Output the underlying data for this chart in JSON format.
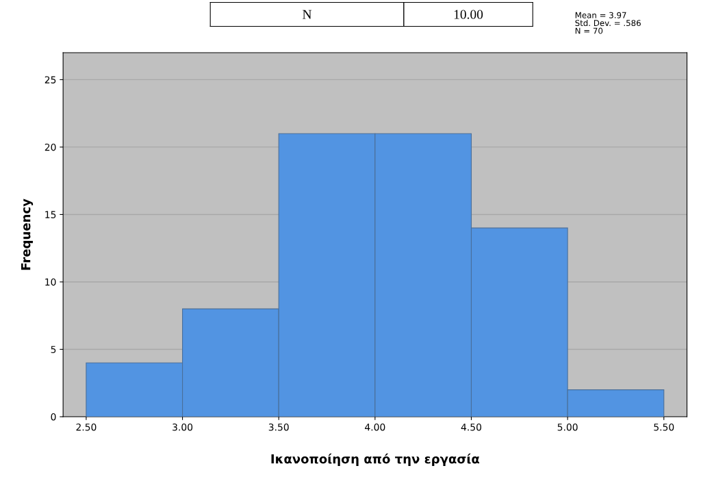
{
  "chart_data": {
    "type": "histogram",
    "xlabel": "Ικανοποίηση από την εργασία",
    "ylabel": "Frequency",
    "bins": [
      2.5,
      3.0,
      3.5,
      4.0,
      4.5,
      5.0,
      5.5
    ],
    "values": [
      4,
      8,
      21,
      21,
      14,
      2
    ],
    "color": "#5294e2",
    "xlim": [
      2.38,
      5.62
    ],
    "xticks": [
      {
        "value": 2.5,
        "label": "2.50"
      },
      {
        "value": 3.0,
        "label": "3.00"
      },
      {
        "value": 3.5,
        "label": "3.50"
      },
      {
        "value": 4.0,
        "label": "4.00"
      },
      {
        "value": 4.5,
        "label": "4.50"
      },
      {
        "value": 5.0,
        "label": "5.00"
      },
      {
        "value": 5.5,
        "label": "5.50"
      }
    ],
    "ylim": [
      0,
      27
    ],
    "yticks": [
      0,
      5,
      10,
      15,
      20,
      25
    ],
    "grid": "y",
    "annotations": [
      "N",
      "10.00",
      "Mean = 3.97\nStd. Dev. = .586\nN = 70"
    ]
  }
}
